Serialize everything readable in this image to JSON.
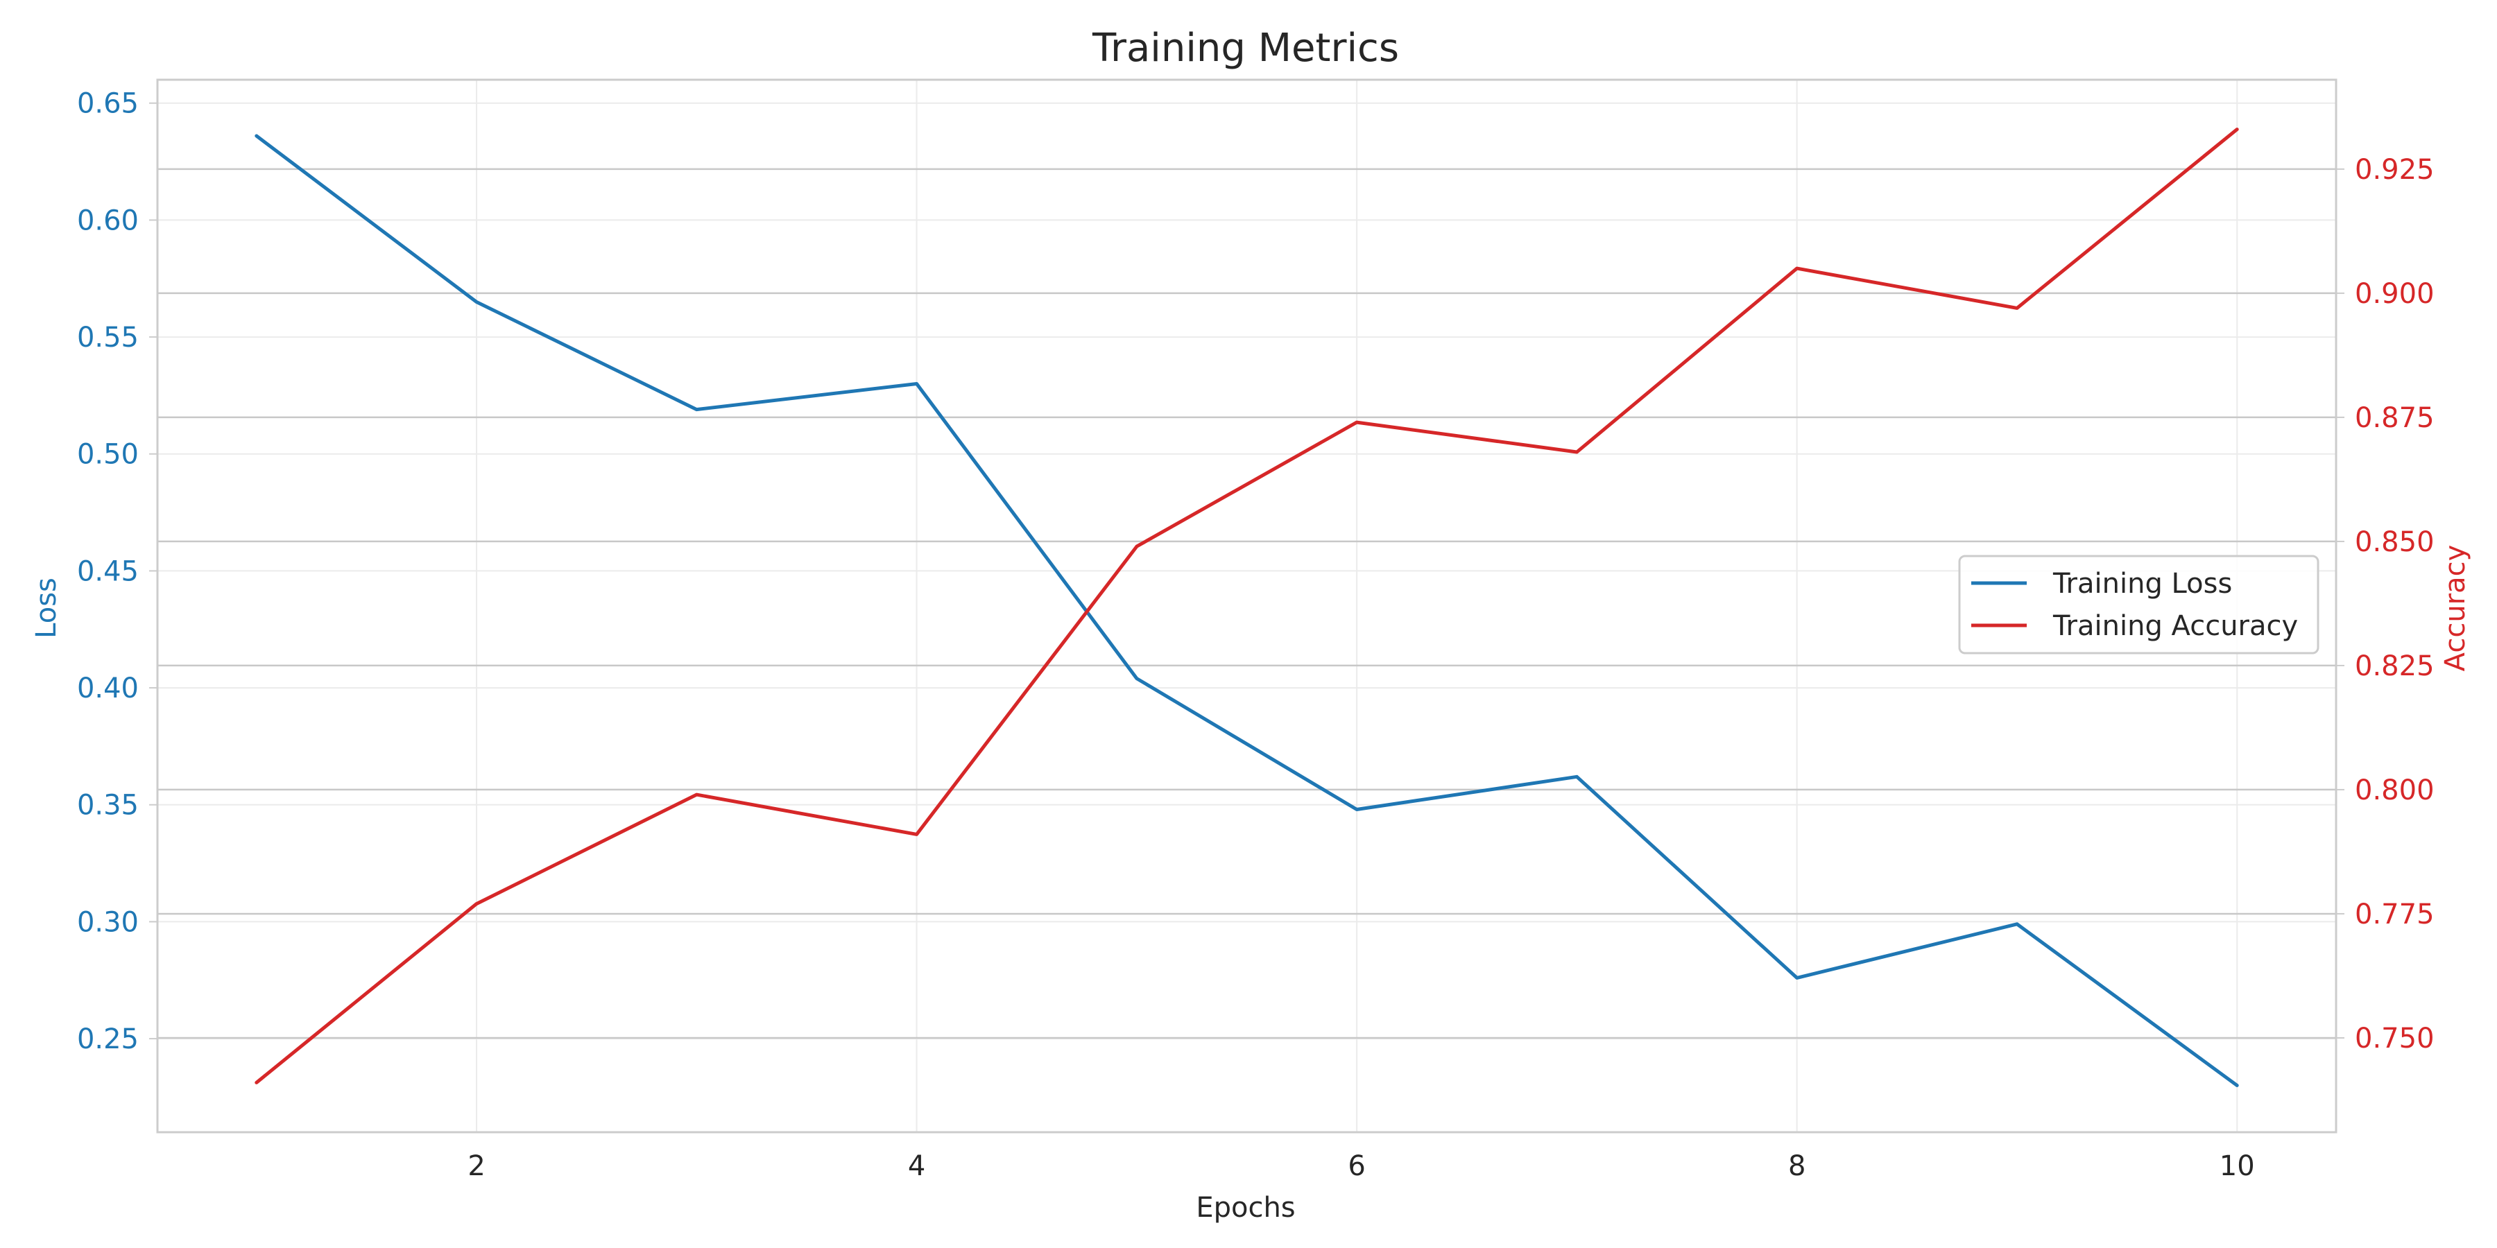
{
  "chart_data": {
    "type": "line",
    "title": "Training Metrics",
    "xlabel": "Epochs",
    "ylabel_left": "Loss",
    "ylabel_right": "Accuracy",
    "x": [
      1,
      2,
      3,
      4,
      5,
      6,
      7,
      8,
      9,
      10
    ],
    "xlim": [
      0.55,
      10.45
    ],
    "xticks": [
      2,
      4,
      6,
      8,
      10
    ],
    "y_left_lim": [
      0.21,
      0.66
    ],
    "y_left_ticks": [
      "0.25",
      "0.30",
      "0.35",
      "0.40",
      "0.45",
      "0.50",
      "0.55",
      "0.60",
      "0.65"
    ],
    "y_right_lim": [
      0.731,
      0.943
    ],
    "y_right_ticks": [
      "0.750",
      "0.775",
      "0.800",
      "0.825",
      "0.850",
      "0.875",
      "0.900",
      "0.925"
    ],
    "grid": true,
    "legend_position": "center-right",
    "series": [
      {
        "name": "Training Loss",
        "axis": "left",
        "color": "#1f77b4",
        "values": [
          0.636,
          0.565,
          0.519,
          0.53,
          0.404,
          0.348,
          0.362,
          0.276,
          0.299,
          0.23
        ]
      },
      {
        "name": "Training Accuracy",
        "axis": "right",
        "color": "#d62728",
        "values": [
          0.741,
          0.777,
          0.799,
          0.791,
          0.849,
          0.874,
          0.868,
          0.905,
          0.897,
          0.933
        ]
      }
    ]
  }
}
